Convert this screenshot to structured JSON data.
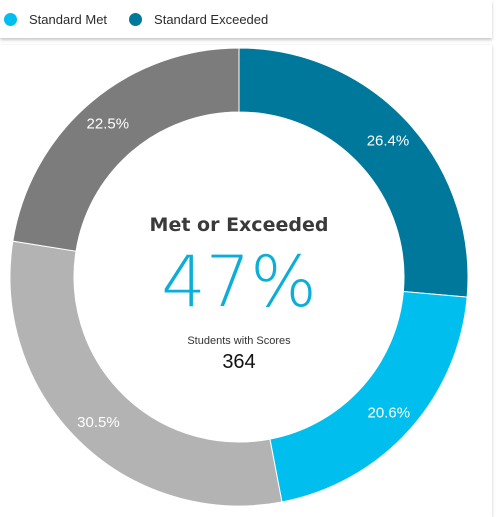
{
  "legend": {
    "items": [
      {
        "label": "Standard Met",
        "color": "#00bfef"
      },
      {
        "label": "Standard Exceeded",
        "color": "#00789b"
      }
    ]
  },
  "center": {
    "title": "Met or Exceeded",
    "percent": "47%",
    "subtitle": "Students with Scores",
    "count": "364"
  },
  "chart_data": {
    "type": "pie",
    "variant": "donut",
    "slices": [
      {
        "label": "26.4%",
        "value": 26.4,
        "color": "#00789b"
      },
      {
        "label": "20.6%",
        "value": 20.6,
        "color": "#00bfef"
      },
      {
        "label": "30.5%",
        "value": 30.5,
        "color": "#b3b3b3"
      },
      {
        "label": "22.5%",
        "value": 22.5,
        "color": "#7c7c7c"
      }
    ],
    "start_angle": "12 o'clock",
    "direction": "clockwise"
  }
}
